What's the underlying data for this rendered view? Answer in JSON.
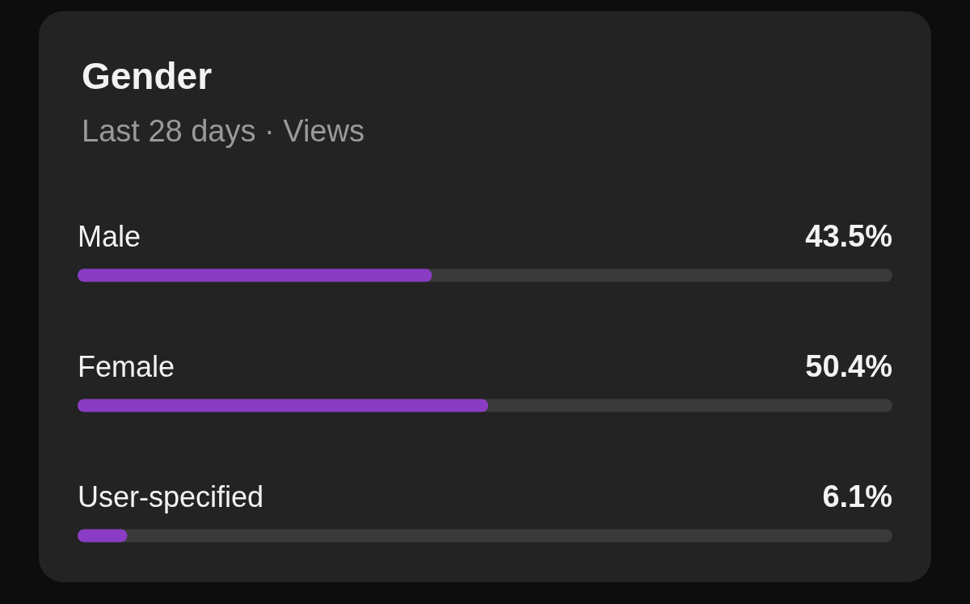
{
  "chart_data": {
    "type": "bar",
    "orientation": "horizontal",
    "title": "Gender",
    "subtitle": "Last 28 days · Views",
    "categories": [
      "Male",
      "Female",
      "User-specified"
    ],
    "values": [
      43.5,
      50.4,
      6.1
    ],
    "color": "#8a3cc4",
    "value_labels": [
      "43.5%",
      "50.4%",
      "6.1%"
    ],
    "xlim": [
      0,
      100
    ],
    "tick_labels": "y",
    "grid": false
  }
}
